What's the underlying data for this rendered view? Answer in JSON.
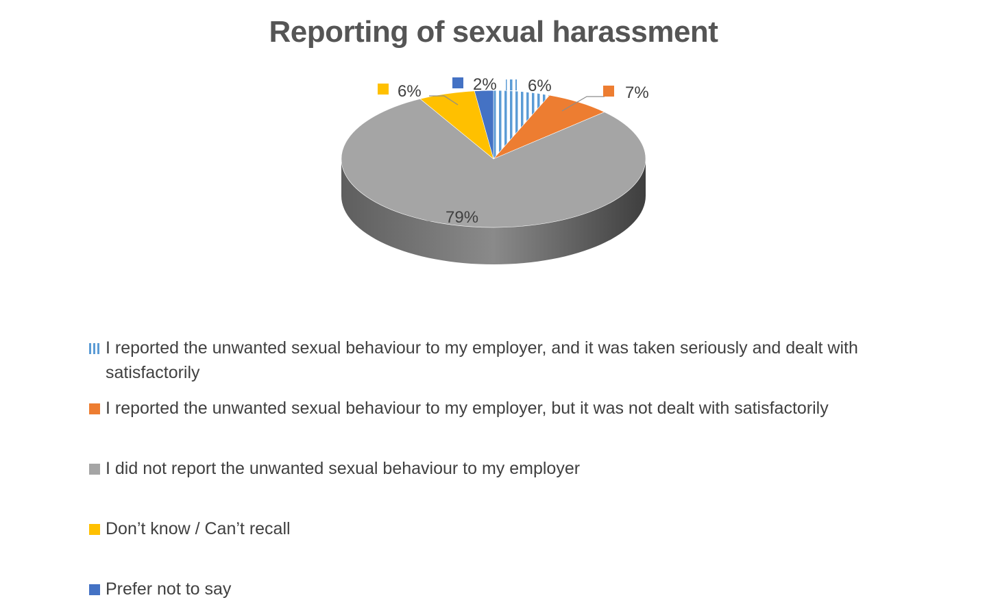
{
  "chart_data": {
    "type": "pie",
    "title": "Reporting of sexual harassment",
    "slices": [
      {
        "name": "I reported the unwanted sexual behaviour to my employer, and it was taken seriously and dealt with satisfactorily",
        "value": 6,
        "label": "6%",
        "color": "#5b9bd5",
        "pattern": "vertical-stripes"
      },
      {
        "name": "I reported the unwanted sexual behaviour to my employer, but it was not dealt with satisfactorily",
        "value": 7,
        "label": "7%",
        "color": "#ed7d31",
        "pattern": "solid"
      },
      {
        "name": "I did not report the unwanted sexual behaviour to my employer",
        "value": 79,
        "label": "79%",
        "color": "#a5a5a5",
        "pattern": "solid"
      },
      {
        "name": "Don’t know / Can’t recall",
        "value": 6,
        "label": "6%",
        "color": "#ffc000",
        "pattern": "solid"
      },
      {
        "name": "Prefer not to say",
        "value": 2,
        "label": "2%",
        "color": "#4472c4",
        "pattern": "solid"
      }
    ],
    "legend_position": "bottom"
  }
}
